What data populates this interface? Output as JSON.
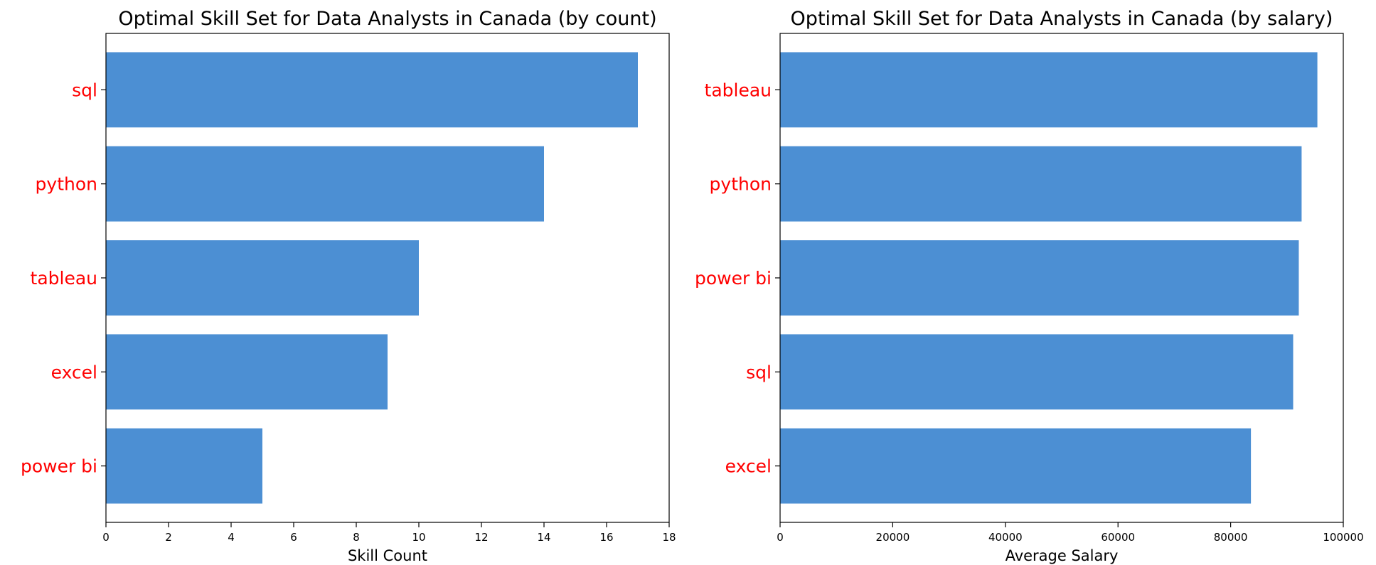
{
  "chart_data": [
    {
      "type": "bar",
      "orientation": "horizontal",
      "title": "Optimal Skill Set for Data Analysts in Canada (by count)",
      "xlabel": "Skill Count",
      "ylabel": "",
      "categories": [
        "sql",
        "python",
        "tableau",
        "excel",
        "power bi"
      ],
      "values": [
        17,
        14,
        10,
        9,
        5
      ],
      "xlim": [
        0,
        18
      ],
      "xticks": [
        0,
        2,
        4,
        6,
        8,
        10,
        12,
        14,
        16,
        18
      ],
      "xtick_labels": [
        "0",
        "2",
        "4",
        "6",
        "8",
        "10",
        "12",
        "14",
        "16",
        "18"
      ],
      "grid": false,
      "legend": "none"
    },
    {
      "type": "bar",
      "orientation": "horizontal",
      "title": "Optimal Skill Set for Data Analysts in Canada (by salary)",
      "xlabel": "Average Salary",
      "ylabel": "",
      "categories": [
        "tableau",
        "python",
        "power bi",
        "sql",
        "excel"
      ],
      "values": [
        95400,
        92600,
        92100,
        91100,
        83600
      ],
      "xlim": [
        0,
        100000
      ],
      "xticks": [
        0,
        20000,
        40000,
        60000,
        80000,
        100000
      ],
      "xtick_labels": [
        "0",
        "20000",
        "40000",
        "60000",
        "80000",
        "100000"
      ],
      "grid": false,
      "legend": "none"
    }
  ],
  "colors": {
    "bar": "#4c8fd3",
    "category_label": "#ff0000",
    "axis": "#000000",
    "text": "#000000"
  }
}
